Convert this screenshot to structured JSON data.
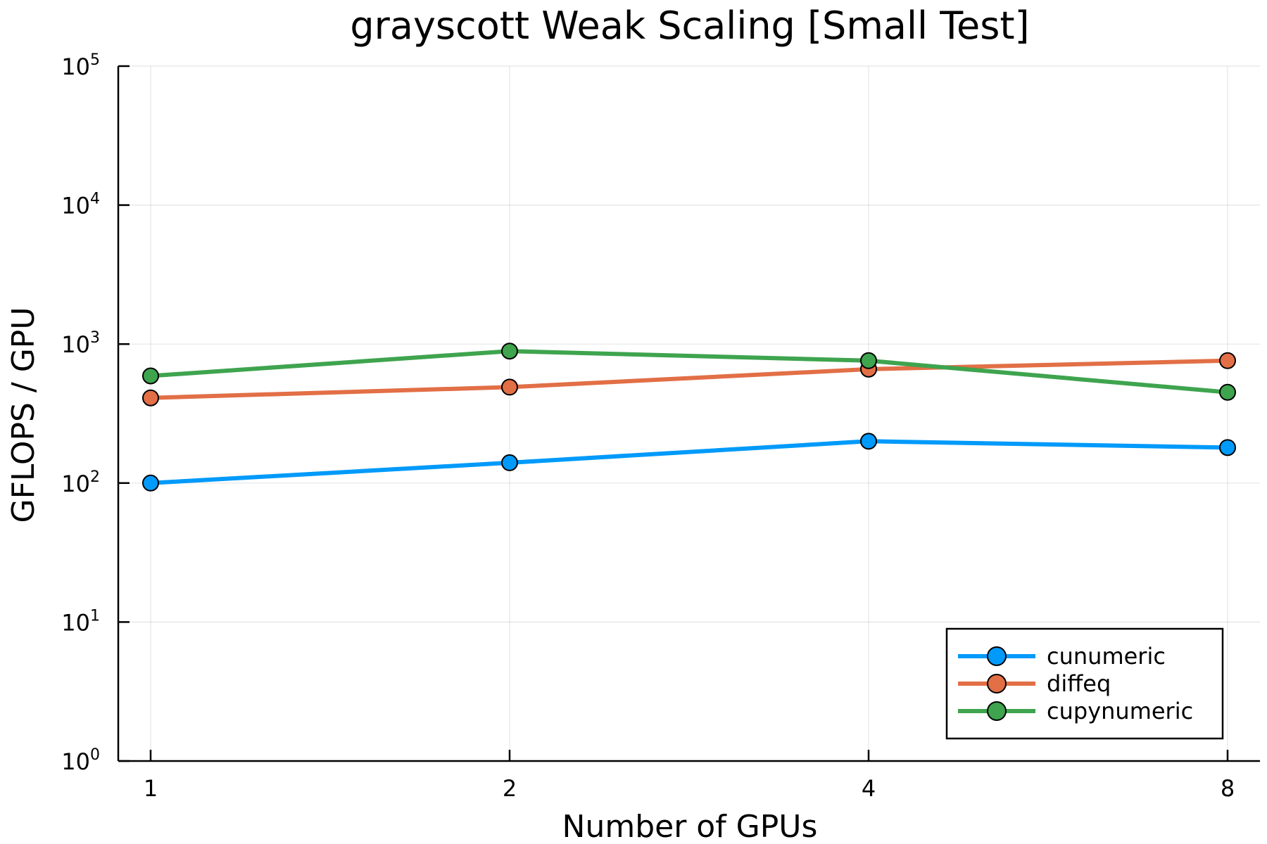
{
  "chart_data": {
    "type": "line",
    "title": "grayscott Weak Scaling [Small Test]",
    "xlabel": "Number of GPUs",
    "ylabel": "GFLOPS / GPU",
    "x": [
      1,
      2,
      4,
      8
    ],
    "x_ticks": [
      "1",
      "2",
      "4",
      "8"
    ],
    "x_scale": "log2",
    "y_scale": "log10",
    "ylim": [
      1,
      100000
    ],
    "y_ticks": [
      {
        "base": "10",
        "exp": "0"
      },
      {
        "base": "10",
        "exp": "1"
      },
      {
        "base": "10",
        "exp": "2"
      },
      {
        "base": "10",
        "exp": "3"
      },
      {
        "base": "10",
        "exp": "4"
      },
      {
        "base": "10",
        "exp": "5"
      }
    ],
    "grid": true,
    "legend_position": "bottom-right",
    "series": [
      {
        "name": "cunumeric",
        "color": "#009AFA",
        "values": [
          100,
          140,
          200,
          180
        ]
      },
      {
        "name": "diffeq",
        "color": "#E26F46",
        "values": [
          410,
          490,
          660,
          760
        ]
      },
      {
        "name": "cupynumeric",
        "color": "#3EA44E",
        "values": [
          590,
          890,
          760,
          450
        ]
      }
    ]
  }
}
